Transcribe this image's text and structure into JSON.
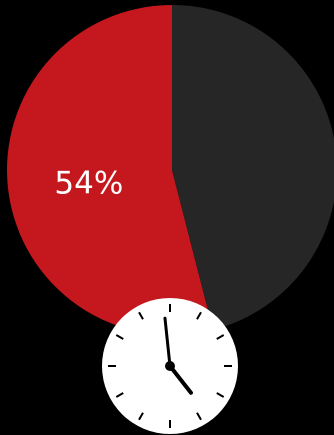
{
  "chart_data": {
    "type": "pie",
    "values": [
      54,
      46
    ],
    "data_labels": [
      "54%",
      ""
    ],
    "colors": [
      "#c5181e",
      "#262626"
    ],
    "title": "",
    "legend": "none"
  },
  "clock": {
    "icon": "clock-icon",
    "hour": 5,
    "minute": 0,
    "face_color": "#ffffff",
    "hand_color": "#000000"
  }
}
